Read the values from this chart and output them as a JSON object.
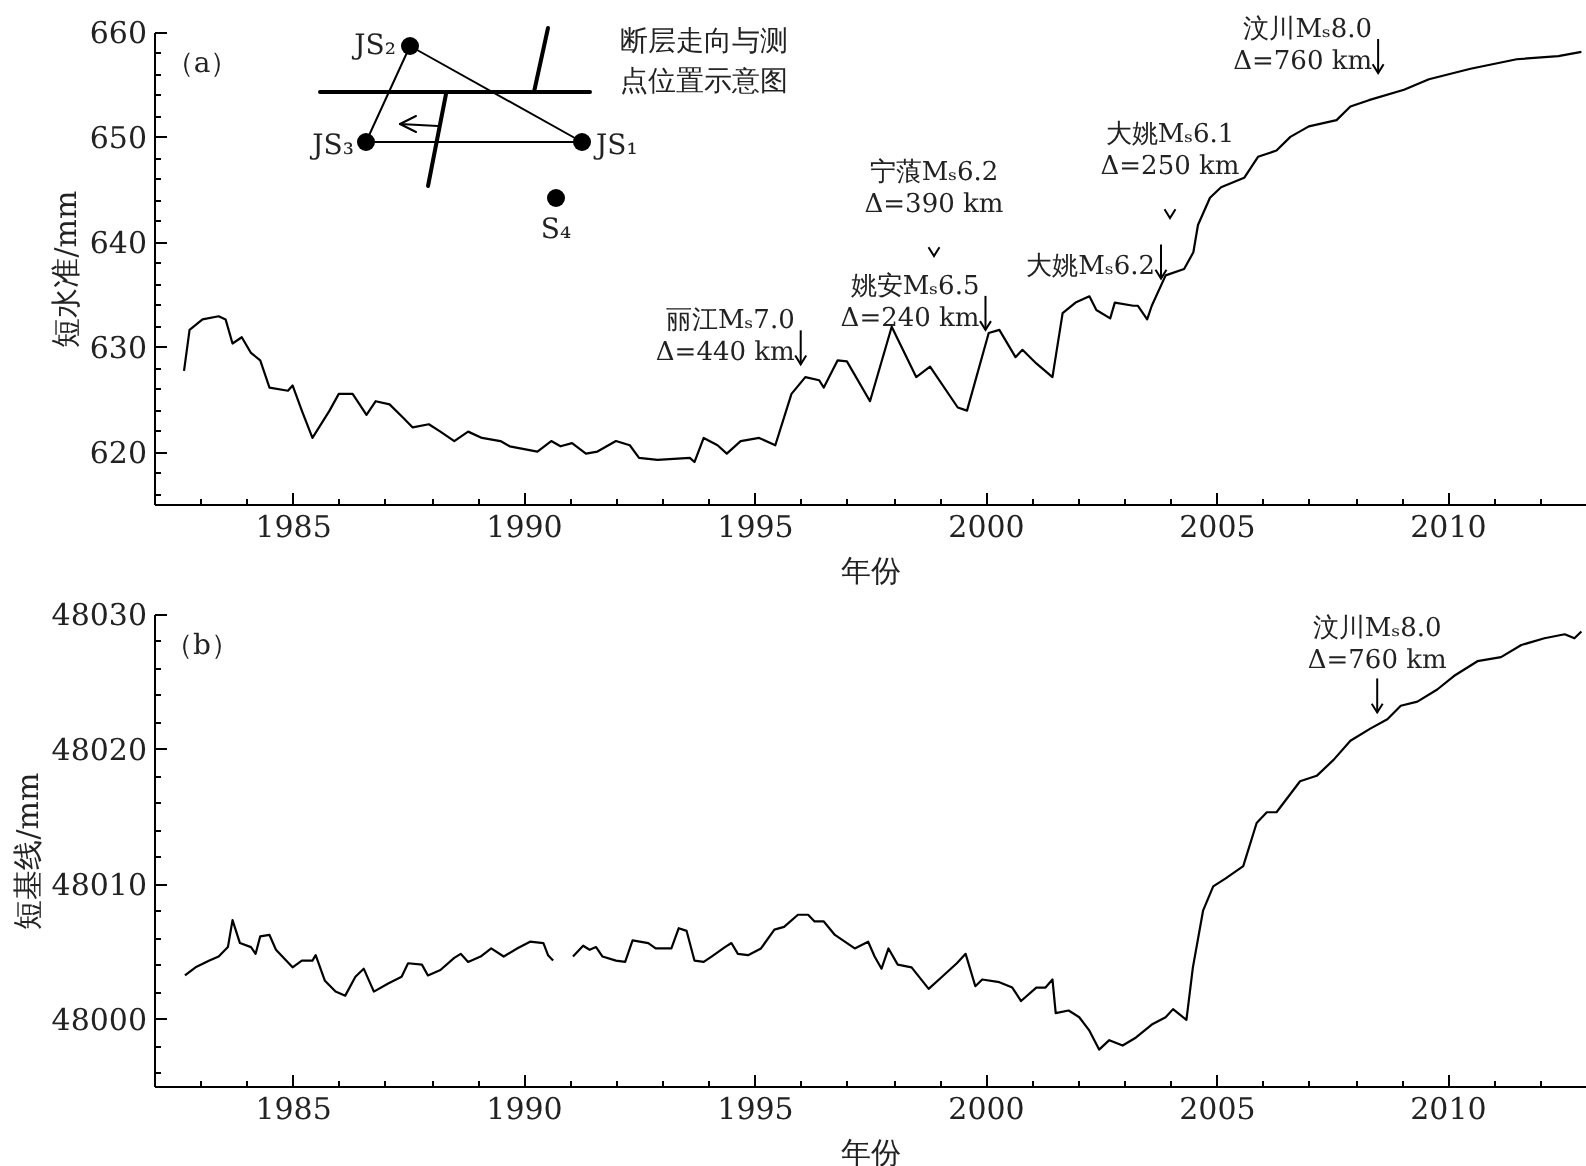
{
  "chart_data": [
    {
      "type": "line",
      "xlabel": "年份",
      "ylabel": "短水准/mm",
      "xlim": [
        1982,
        2013
      ],
      "ylim": [
        615,
        660
      ],
      "xticks": [
        {
          "value": 1983,
          "label": null
        },
        {
          "value": 1984,
          "label": null
        },
        1985,
        {
          "value": 1986,
          "label": null
        },
        {
          "value": 1987,
          "label": null
        },
        {
          "value": 1988,
          "label": null
        },
        {
          "value": 1989,
          "label": null
        },
        1990,
        {
          "value": 1991,
          "label": null
        },
        {
          "value": 1992,
          "label": null
        },
        {
          "value": 1993,
          "label": null
        },
        {
          "value": 1994,
          "label": null
        },
        1995,
        {
          "value": 1996,
          "label": null
        },
        {
          "value": 1997,
          "label": null
        },
        {
          "value": 1998,
          "label": null
        },
        {
          "value": 1999,
          "label": null
        },
        2000,
        {
          "value": 2001,
          "label": null
        },
        {
          "value": 2002,
          "label": null
        },
        {
          "value": 2003,
          "label": null
        },
        {
          "value": 2004,
          "label": null
        },
        2005,
        {
          "value": 2006,
          "label": null
        },
        {
          "value": 2007,
          "label": null
        },
        {
          "value": 2008,
          "label": null
        },
        {
          "value": 2009,
          "label": null
        },
        2010,
        {
          "value": 2011,
          "label": null
        },
        {
          "value": 2012,
          "label": null
        },
        {
          "value": 2013,
          "label": null
        }
      ],
      "yticks": [
        {
          "value": 616,
          "label": null
        },
        {
          "value": 618,
          "label": null
        },
        620,
        {
          "value": 622,
          "label": null
        },
        {
          "value": 624,
          "label": null
        },
        {
          "value": 626,
          "label": null
        },
        {
          "value": 628,
          "label": null
        },
        630,
        {
          "value": 632,
          "label": null
        },
        {
          "value": 634,
          "label": null
        },
        {
          "value": 636,
          "label": null
        },
        {
          "value": 638,
          "label": null
        },
        640,
        {
          "value": 642,
          "label": null
        },
        {
          "value": 644,
          "label": null
        },
        {
          "value": 646,
          "label": null
        },
        {
          "value": 648,
          "label": null
        },
        650,
        {
          "value": 652,
          "label": null
        },
        {
          "value": 654,
          "label": null
        },
        {
          "value": 656,
          "label": null
        },
        {
          "value": 658,
          "label": null
        },
        660
      ],
      "x": [
        1982.65,
        1982.77,
        1983.05,
        1983.4,
        1983.55,
        1983.7,
        1983.9,
        1984.1,
        1984.3,
        1984.5,
        1984.9,
        1985.0,
        1985.2,
        1985.43,
        1985.8,
        1986.0,
        1986.3,
        1986.6,
        1986.8,
        1987.1,
        1987.4,
        1987.6,
        1987.95,
        1988.2,
        1988.5,
        1988.8,
        1989.1,
        1989.5,
        1989.7,
        1990.3,
        1990.6,
        1990.8,
        1991.05,
        1991.35,
        1991.6,
        1992.0,
        1992.3,
        1992.5,
        1992.9,
        1993.6,
        1993.7,
        1993.9,
        1994.2,
        1994.4,
        1994.7,
        1995.1,
        1995.45,
        1995.8,
        1996.1,
        1996.4,
        1996.5,
        1996.8,
        1997.0,
        1997.5,
        1997.97,
        1998.5,
        1998.8,
        1999.4,
        1999.6,
        2000.07,
        2000.3,
        2000.65,
        2000.8,
        2001.1,
        2001.45,
        2001.67,
        2001.95,
        2002.25,
        2002.4,
        2002.7,
        2002.8,
        2003.2,
        2003.3,
        2003.5,
        2003.6,
        2003.9,
        2004.3,
        2004.5,
        2004.6,
        2004.86,
        2005.1,
        2005.6,
        2005.9,
        2006.3,
        2006.6,
        2007.0,
        2007.6,
        2007.9,
        2008.3,
        2009.06,
        2009.6,
        2010.5,
        2011.5,
        2012.4,
        2012.9
      ],
      "series": [
        {
          "color": "#000000",
          "values": [
            627.7,
            631.6,
            632.6,
            632.9,
            632.6,
            630.3,
            630.9,
            629.4,
            628.7,
            626.1,
            625.8,
            626.3,
            623.9,
            621.3,
            623.9,
            625.5,
            625.5,
            623.5,
            624.8,
            624.5,
            623.2,
            622.3,
            622.6,
            621.9,
            621.0,
            621.9,
            621.3,
            621.0,
            620.5,
            620.0,
            621.0,
            620.5,
            620.8,
            619.8,
            620.0,
            621.0,
            620.6,
            619.4,
            619.2,
            619.4,
            619.0,
            621.3,
            620.6,
            619.8,
            621.0,
            621.3,
            620.6,
            625.5,
            627.1,
            626.8,
            626.1,
            628.7,
            628.6,
            624.8,
            631.9,
            627.1,
            628.1,
            624.2,
            623.9,
            631.3,
            631.6,
            629.0,
            629.7,
            628.4,
            627.1,
            633.2,
            634.2,
            634.8,
            633.5,
            632.7,
            634.2,
            633.9,
            633.9,
            632.6,
            633.9,
            636.8,
            637.4,
            639.0,
            641.6,
            644.2,
            645.2,
            646.1,
            648.1,
            648.7,
            650.0,
            651.0,
            651.6,
            652.9,
            653.5,
            654.5,
            655.5,
            656.5,
            657.4,
            657.7,
            658.1
          ]
        }
      ],
      "annotations": [
        "（a）",
        "断层走向与测点位置示意图",
        "JS₁",
        "JS₂",
        "JS₃",
        "S₄",
        {
          "text": "丽江Mₛ7.0\nΔ=440 km",
          "x": 1996.0,
          "y": 626.6
        },
        "宁蒗Mₛ6.2\nΔ=390 km",
        {
          "text": "姚安Mₛ6.5\nΔ=240 km",
          "x": 2000.0,
          "y": 631.6
        },
        {
          "text": "大姚Mₛ6.2",
          "x": 2003.8,
          "y": 636.5
        },
        "大姚Mₛ6.1\nΔ=250 km",
        {
          "text": "汶川Mₛ8.0\nΔ=760 km",
          "x": 2008.5,
          "y": 653.8
        }
      ]
    },
    {
      "type": "line",
      "xlabel": "年份",
      "ylabel": "短基线/mm",
      "xlim": [
        1982,
        2013
      ],
      "ylim": [
        47995,
        48030
      ],
      "xticks": [
        {
          "value": 1983,
          "label": null
        },
        {
          "value": 1984,
          "label": null
        },
        1985,
        {
          "value": 1986,
          "label": null
        },
        {
          "value": 1987,
          "label": null
        },
        {
          "value": 1988,
          "label": null
        },
        {
          "value": 1989,
          "label": null
        },
        1990,
        {
          "value": 1991,
          "label": null
        },
        {
          "value": 1992,
          "label": null
        },
        {
          "value": 1993,
          "label": null
        },
        {
          "value": 1994,
          "label": null
        },
        1995,
        {
          "value": 1996,
          "label": null
        },
        {
          "value": 1997,
          "label": null
        },
        {
          "value": 1998,
          "label": null
        },
        {
          "value": 1999,
          "label": null
        },
        2000,
        {
          "value": 2001,
          "label": null
        },
        {
          "value": 2002,
          "label": null
        },
        {
          "value": 2003,
          "label": null
        },
        {
          "value": 2004,
          "label": null
        },
        2005,
        {
          "value": 2006,
          "label": null
        },
        {
          "value": 2007,
          "label": null
        },
        {
          "value": 2008,
          "label": null
        },
        {
          "value": 2009,
          "label": null
        },
        2010,
        {
          "value": 2011,
          "label": null
        },
        {
          "value": 2012,
          "label": null
        },
        {
          "value": 2013,
          "label": null
        }
      ],
      "yticks": [
        {
          "value": 47996,
          "label": null
        },
        {
          "value": 47998,
          "label": null
        },
        48000,
        {
          "value": 48002,
          "label": null
        },
        {
          "value": 48004,
          "label": null
        },
        {
          "value": 48006,
          "label": null
        },
        {
          "value": 48008,
          "label": null
        },
        48010,
        {
          "value": 48012,
          "label": null
        },
        {
          "value": 48014,
          "label": null
        },
        {
          "value": 48016,
          "label": null
        },
        {
          "value": 48018,
          "label": null
        },
        48020,
        {
          "value": 48022,
          "label": null
        },
        {
          "value": 48024,
          "label": null
        },
        {
          "value": 48026,
          "label": null
        },
        {
          "value": 48028,
          "label": null
        },
        48030
      ],
      "x": [
        1982.67,
        1982.9,
        1983.2,
        1983.4,
        1983.6,
        1983.7,
        1983.86,
        1984.1,
        1984.2,
        1984.3,
        1984.5,
        1984.64,
        1985.0,
        1985.2,
        1985.43,
        1985.5,
        1985.7,
        1985.93,
        1986.14,
        1986.36,
        1986.54,
        1986.76,
        1987.07,
        1987.36,
        1987.5,
        1987.8,
        1987.93,
        1988.2,
        1988.5,
        1988.64,
        1988.8,
        1989.07,
        1989.3,
        1989.57,
        1989.86,
        1990.14,
        1990.43,
        1990.53,
        1990.64,
        1990.85,
        1991.07,
        1991.29,
        1991.43,
        1991.57,
        1991.71,
        1992.0,
        1992.2,
        1992.36,
        1992.7,
        1992.86,
        1993.2,
        1993.36,
        1993.53,
        1993.7,
        1993.9,
        1994.07,
        1994.36,
        1994.5,
        1994.64,
        1994.86,
        1995.14,
        1995.43,
        1995.64,
        1995.94,
        1996.16,
        1996.3,
        1996.5,
        1996.74,
        1997.17,
        1997.46,
        1997.6,
        1997.75,
        1997.9,
        1998.1,
        1998.4,
        1998.77,
        1999.06,
        1999.38,
        1999.57,
        1999.78,
        1999.93,
        2000.3,
        2000.58,
        2000.77,
        2001.1,
        2001.3,
        2001.45,
        2001.52,
        2001.8,
        2002.03,
        2002.25,
        2002.46,
        2002.68,
        2002.97,
        2003.26,
        2003.62,
        2003.9,
        2004.06,
        2004.35,
        2004.49,
        2004.71,
        2004.93,
        2005.2,
        2005.58,
        2005.87,
        2006.09,
        2006.3,
        2006.81,
        2007.17,
        2007.54,
        2007.9,
        2008.33,
        2008.7,
        2008.99,
        2009.35,
        2009.78,
        2010.14,
        2010.65,
        2011.16,
        2011.6,
        2012.1,
        2012.54,
        2012.75,
        2012.9
      ],
      "series": [
        {
          "color": "#000000",
          "values": [
            48003.2,
            48003.8,
            48004.3,
            48004.6,
            48005.3,
            48007.3,
            48005.6,
            48005.3,
            48004.8,
            48006.1,
            48006.2,
            48005.1,
            48003.8,
            48004.3,
            48004.3,
            48004.7,
            48002.8,
            48002.0,
            48001.7,
            48003.1,
            48003.7,
            48002.0,
            48002.6,
            48003.1,
            48004.1,
            48004.0,
            48003.2,
            48003.6,
            48004.5,
            48004.8,
            48004.2,
            48004.6,
            48005.2,
            48004.6,
            48005.2,
            48005.7,
            48005.6,
            48004.7,
            48004.3,
            null,
            48004.6,
            48005.4,
            48005.1,
            48005.3,
            48004.6,
            48004.3,
            48004.2,
            48005.8,
            48005.6,
            48005.2,
            48005.2,
            48006.7,
            48006.5,
            48004.3,
            48004.2,
            48004.6,
            48005.3,
            48005.6,
            48004.8,
            48004.7,
            48005.2,
            48006.6,
            48006.8,
            48007.7,
            48007.7,
            48007.2,
            48007.2,
            48006.2,
            48005.2,
            48005.7,
            48004.6,
            48003.7,
            48005.2,
            48004.0,
            48003.8,
            48002.2,
            48003.1,
            48004.1,
            48004.8,
            48002.4,
            48002.9,
            48002.7,
            48002.3,
            48001.3,
            48002.3,
            48002.3,
            48002.9,
            48000.4,
            48000.6,
            48000.1,
            47999.1,
            47997.7,
            47998.4,
            47998.0,
            47998.6,
            47999.6,
            48000.1,
            48000.7,
            47999.9,
            48003.8,
            48008.0,
            48009.8,
            48010.4,
            48011.3,
            48014.5,
            48015.3,
            48015.3,
            48017.6,
            48018.0,
            48019.2,
            48020.6,
            48021.5,
            48022.2,
            48023.2,
            48023.5,
            48024.4,
            48025.4,
            48026.5,
            48026.8,
            48027.7,
            48028.2,
            48028.5,
            48028.2,
            48028.7
          ]
        }
      ],
      "annotations": [
        "（b）",
        {
          "text": "汶川Mₛ8.0\nΔ=760 km",
          "x": 2008.48,
          "y": 48022.7
        }
      ]
    }
  ]
}
